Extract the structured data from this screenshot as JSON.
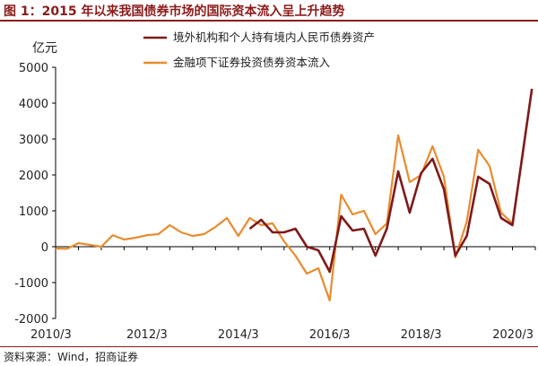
{
  "header": {
    "title": "图 1：2015 年以来我国债券市场的国际资本流入呈上升趋势"
  },
  "footer": {
    "source": "资料来源：Wind，招商证券"
  },
  "colors": {
    "accent": "#8b1a1a",
    "series1": "#7f1a1a",
    "series2": "#e88b2e"
  },
  "chart_data": {
    "type": "line",
    "title": "",
    "ylabel": "亿元",
    "xlabel": "",
    "ylim": [
      -2000,
      5000
    ],
    "yticks": [
      5000,
      4000,
      3000,
      2000,
      1000,
      0,
      -1000,
      -2000
    ],
    "xticks": [
      "2010/3",
      "2012/3",
      "2014/3",
      "2016/3",
      "2018/3",
      "2020/3"
    ],
    "xlim": [
      0,
      42
    ],
    "grid": false,
    "legend_position": "top",
    "series": [
      {
        "name": "境外机构和个人持有境内人民币债券资产",
        "color": "#7f1a1a",
        "points": [
          [
            17,
            500
          ],
          [
            18,
            750
          ],
          [
            19,
            400
          ],
          [
            20,
            400
          ],
          [
            21,
            500
          ],
          [
            22,
            0
          ],
          [
            23,
            -100
          ],
          [
            24,
            -700
          ],
          [
            25,
            850
          ],
          [
            26,
            450
          ],
          [
            27,
            500
          ],
          [
            28,
            -250
          ],
          [
            29,
            500
          ],
          [
            30,
            2100
          ],
          [
            31,
            950
          ],
          [
            32,
            2050
          ],
          [
            33,
            2450
          ],
          [
            34,
            1600
          ],
          [
            35,
            -250
          ],
          [
            36,
            300
          ],
          [
            37,
            1950
          ],
          [
            38,
            1750
          ],
          [
            39,
            800
          ],
          [
            40,
            600
          ],
          [
            41.7,
            4400
          ]
        ]
      },
      {
        "name": "金融项下证券投资债券资本流入",
        "color": "#e88b2e",
        "points": [
          [
            0,
            -50
          ],
          [
            1,
            -60
          ],
          [
            2,
            100
          ],
          [
            3,
            50
          ],
          [
            4,
            0
          ],
          [
            5,
            320
          ],
          [
            6,
            200
          ],
          [
            7,
            250
          ],
          [
            8,
            320
          ],
          [
            9,
            350
          ],
          [
            10,
            600
          ],
          [
            11,
            400
          ],
          [
            12,
            300
          ],
          [
            13,
            350
          ],
          [
            14,
            550
          ],
          [
            15,
            800
          ],
          [
            16,
            300
          ],
          [
            17,
            800
          ],
          [
            18,
            600
          ],
          [
            19,
            650
          ],
          [
            20,
            150
          ],
          [
            21,
            -250
          ],
          [
            22,
            -750
          ],
          [
            23,
            -600
          ],
          [
            24,
            -1500
          ],
          [
            25,
            1450
          ],
          [
            26,
            900
          ],
          [
            27,
            1000
          ],
          [
            28,
            350
          ],
          [
            29,
            650
          ],
          [
            30,
            3100
          ],
          [
            31,
            1800
          ],
          [
            32,
            2000
          ],
          [
            33,
            2800
          ],
          [
            34,
            1950
          ],
          [
            35,
            -300
          ],
          [
            36,
            700
          ],
          [
            37,
            2700
          ],
          [
            38,
            2250
          ],
          [
            39,
            950
          ],
          [
            40,
            650
          ],
          [
            41,
            2800
          ]
        ]
      }
    ]
  }
}
